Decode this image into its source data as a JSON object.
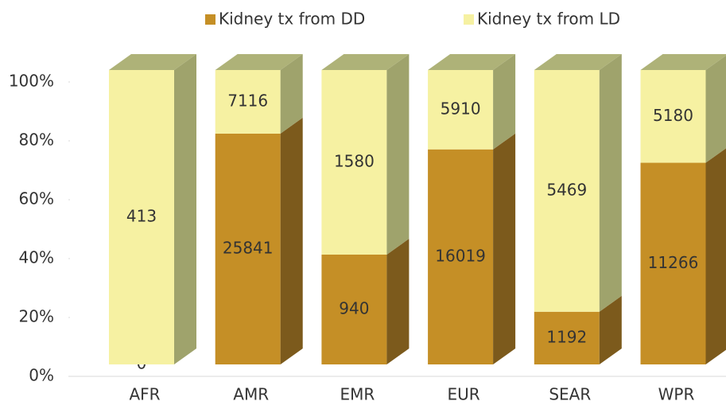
{
  "chart_data": {
    "type": "bar",
    "stacking": "percent",
    "categories": [
      "AFR",
      "AMR",
      "EMR",
      "EUR",
      "SEAR",
      "WPR"
    ],
    "series": [
      {
        "name": "Kidney tx from DD",
        "color": "#c58f26",
        "side_color": "#7c5a1c",
        "top_color": "#8f6a22",
        "values": [
          0,
          25841,
          940,
          16019,
          1192,
          11266
        ]
      },
      {
        "name": "Kidney tx from LD",
        "color": "#f6f1a2",
        "side_color": "#9fa36c",
        "top_color": "#aeb278",
        "values": [
          413,
          7116,
          1580,
          5910,
          5469,
          5180
        ]
      }
    ],
    "ylim": [
      0,
      100
    ],
    "yticks": [
      {
        "value": 0,
        "label": "0%"
      },
      {
        "value": 20,
        "label": "20%"
      },
      {
        "value": 40,
        "label": "40%"
      },
      {
        "value": 60,
        "label": "60%"
      },
      {
        "value": 80,
        "label": "80%"
      },
      {
        "value": 100,
        "label": "100%"
      }
    ],
    "legend": "top"
  }
}
